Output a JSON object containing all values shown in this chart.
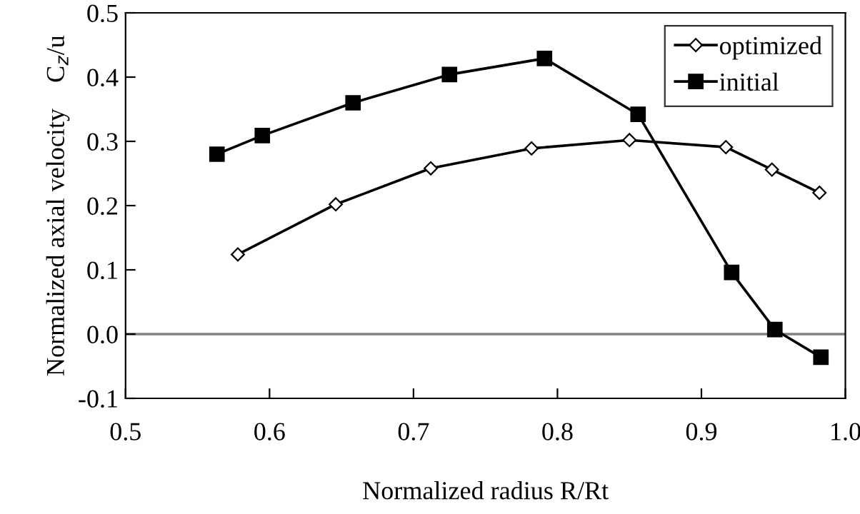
{
  "chart_data": {
    "type": "line",
    "xlabel": "Normalized radius R/Rt",
    "ylabel": "Normalized axial velocity    C$_{z}$/u",
    "xlim": [
      0.5,
      1.0
    ],
    "xticks": [
      0.5,
      0.6,
      0.7,
      0.8,
      0.9,
      {
        "value": 1.0,
        "label": "1.0"
      }
    ],
    "ylim": [
      -0.1,
      0.5
    ],
    "yticks": [
      {
        "value": -0.1,
        "label": "-0.1"
      },
      {
        "value": 0.0,
        "label": "0.0"
      },
      0.1,
      0.2,
      0.3,
      0.4,
      0.5
    ],
    "grid": false,
    "legend": "top right",
    "line_style": "solid",
    "ref_lines": [
      {
        "axis": "y",
        "value": 0,
        "color": "#808080"
      }
    ],
    "series": [
      {
        "name": "optimized",
        "color": "#000000",
        "marker": "diamond",
        "x": [
          0.578,
          0.646,
          0.712,
          0.782,
          0.85,
          0.917,
          0.949,
          0.982
        ],
        "values": [
          0.124,
          0.202,
          0.258,
          0.289,
          0.302,
          0.291,
          0.256,
          0.22
        ]
      },
      {
        "name": "initial",
        "color": "#000000",
        "marker": "square",
        "x": [
          0.5635,
          0.595,
          0.658,
          0.725,
          0.791,
          0.856,
          0.921,
          0.951,
          0.983
        ],
        "values": [
          0.28,
          0.309,
          0.36,
          0.404,
          0.429,
          0.342,
          0.096,
          0.007,
          -0.036
        ]
      }
    ]
  }
}
